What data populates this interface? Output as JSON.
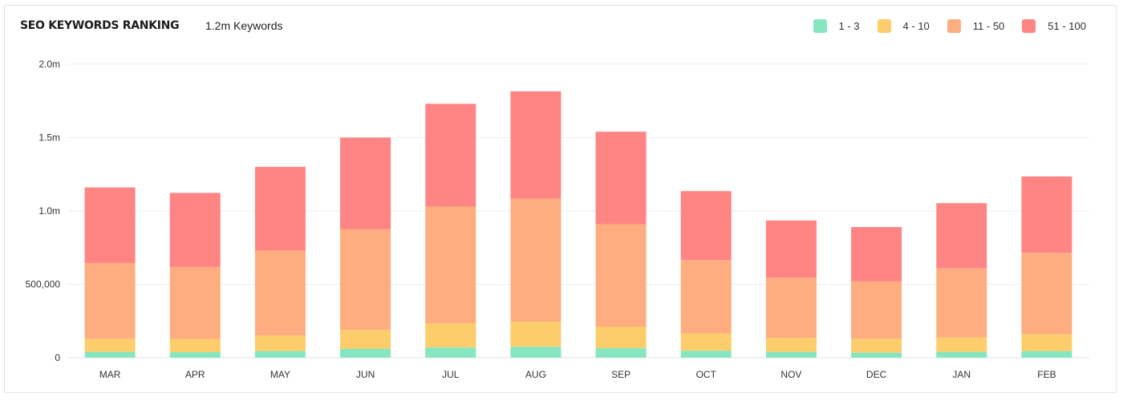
{
  "header": {
    "title": "SEO KEYWORDS RANKING",
    "subtitle": "1.2m Keywords"
  },
  "chart_data": {
    "type": "bar",
    "stacked": true,
    "title": "SEO KEYWORDS RANKING",
    "subtitle": "1.2m Keywords",
    "xlabel": "",
    "ylabel": "",
    "categories": [
      "MAR",
      "APR",
      "MAY",
      "JUN",
      "JUL",
      "AUG",
      "SEP",
      "OCT",
      "NOV",
      "DEC",
      "JAN",
      "FEB"
    ],
    "series": [
      {
        "name": "1 - 3",
        "color": "#86e6bf",
        "values": [
          40000,
          38000,
          45000,
          60000,
          70000,
          75000,
          65000,
          48000,
          40000,
          35000,
          40000,
          45000
        ]
      },
      {
        "name": "4 - 10",
        "color": "#fccd6a",
        "values": [
          90000,
          90000,
          105000,
          130000,
          165000,
          170000,
          145000,
          117000,
          95000,
          95000,
          98000,
          115000
        ]
      },
      {
        "name": "11 - 50",
        "color": "#fdad80",
        "values": [
          515000,
          490000,
          580000,
          685000,
          795000,
          840000,
          700000,
          500000,
          410000,
          390000,
          470000,
          555000
        ]
      },
      {
        "name": "51 - 100",
        "color": "#ff8585",
        "values": [
          515000,
          505000,
          570000,
          625000,
          700000,
          730000,
          630000,
          470000,
          390000,
          370000,
          445000,
          520000
        ]
      }
    ],
    "yticks": [
      {
        "value": 0,
        "label": "0"
      },
      {
        "value": 500000,
        "label": "500,000"
      },
      {
        "value": 1000000,
        "label": "1.0m"
      },
      {
        "value": 1500000,
        "label": "1.5m"
      },
      {
        "value": 2000000,
        "label": "2.0m"
      }
    ],
    "ylim": [
      0,
      2000000
    ],
    "grid": true,
    "legend_position": "top-right"
  }
}
